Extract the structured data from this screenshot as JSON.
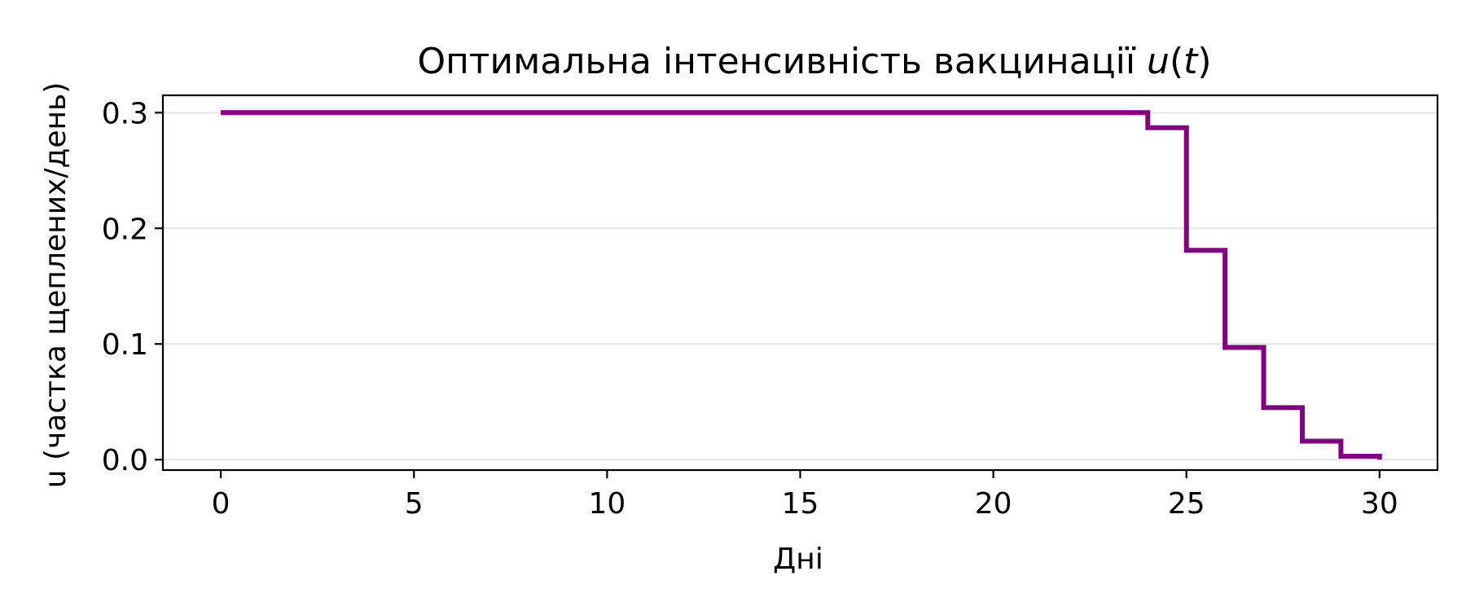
{
  "chart_data": {
    "type": "line",
    "title_main": "Оптимальна інтенсивність вакцинації ",
    "title_symbol": "u",
    "title_paren_open": "(",
    "title_var": "t",
    "title_paren_close": ")",
    "xlabel": "Дні",
    "ylabel": "u (частка щеплених/день)",
    "xlim": [
      -1.5,
      31.5
    ],
    "ylim": [
      -0.009,
      0.315
    ],
    "xticks": [
      0,
      5,
      10,
      15,
      20,
      25,
      30
    ],
    "yticks": [
      0.0,
      0.1,
      0.2,
      0.3
    ],
    "xtick_labels": [
      "0",
      "5",
      "10",
      "15",
      "20",
      "25",
      "30"
    ],
    "ytick_labels": [
      "0.0",
      "0.1",
      "0.2",
      "0.3"
    ],
    "grid": "y",
    "step": "post",
    "series": [
      {
        "color": "#800080",
        "x": [
          0,
          1,
          2,
          3,
          4,
          5,
          6,
          7,
          8,
          9,
          10,
          11,
          12,
          13,
          14,
          15,
          16,
          17,
          18,
          19,
          20,
          21,
          22,
          23,
          24,
          25,
          26,
          27,
          28,
          29,
          30
        ],
        "y": [
          0.3,
          0.3,
          0.3,
          0.3,
          0.3,
          0.3,
          0.3,
          0.3,
          0.3,
          0.3,
          0.3,
          0.3,
          0.3,
          0.3,
          0.3,
          0.3,
          0.3,
          0.3,
          0.3,
          0.3,
          0.3,
          0.3,
          0.3,
          0.3,
          0.287,
          0.181,
          0.097,
          0.045,
          0.016,
          0.003,
          0.0
        ]
      }
    ]
  }
}
